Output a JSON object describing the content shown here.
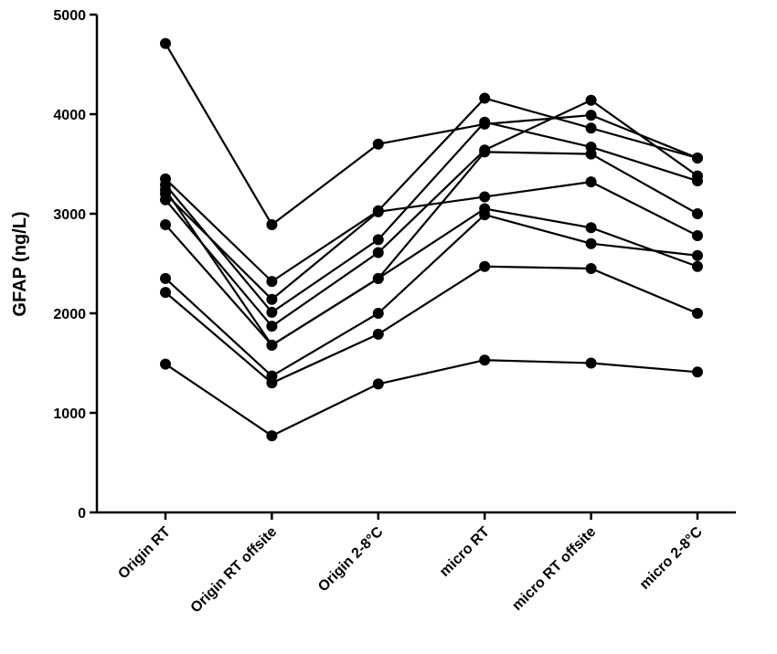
{
  "chart_data": {
    "type": "line",
    "y_label": "GFAP (ng/L)",
    "categories": [
      "Origin  RT",
      "Origin RT offsite",
      "Origin  2-8°C",
      "micro RT",
      "micro RT offsite",
      "micro 2-8°C"
    ],
    "series": [
      {
        "color": "#000000",
        "values": [
          4710,
          2890,
          3700,
          3900,
          3990,
          3560
        ]
      },
      {
        "color": "#000000",
        "values": [
          3350,
          2320,
          3030,
          4160,
          3860,
          3560
        ]
      },
      {
        "color": "#000000",
        "values": [
          3290,
          2010,
          2740,
          3920,
          3670,
          3330
        ]
      },
      {
        "color": "#000000",
        "values": [
          3200,
          2140,
          3020,
          3170,
          3320,
          2780
        ]
      },
      {
        "color": "#000000",
        "values": [
          3140,
          1870,
          2610,
          3640,
          4140,
          3380
        ]
      },
      {
        "color": "#000000",
        "values": [
          3240,
          1680,
          2350,
          3620,
          3600,
          3000
        ]
      },
      {
        "color": "#000000",
        "values": [
          2890,
          1680,
          2350,
          3050,
          2860,
          2470
        ]
      },
      {
        "color": "#000000",
        "values": [
          2350,
          1370,
          2000,
          2990,
          2700,
          2580
        ]
      },
      {
        "color": "#000000",
        "values": [
          2210,
          1300,
          1790,
          2470,
          2450,
          2000
        ]
      },
      {
        "color": "#000000",
        "values": [
          1490,
          770,
          1290,
          1530,
          1500,
          1410
        ]
      }
    ],
    "ylim": [
      0,
      5000
    ],
    "yticks": [
      0,
      1000,
      2000,
      3000,
      4000,
      5000
    ],
    "grid": false
  }
}
